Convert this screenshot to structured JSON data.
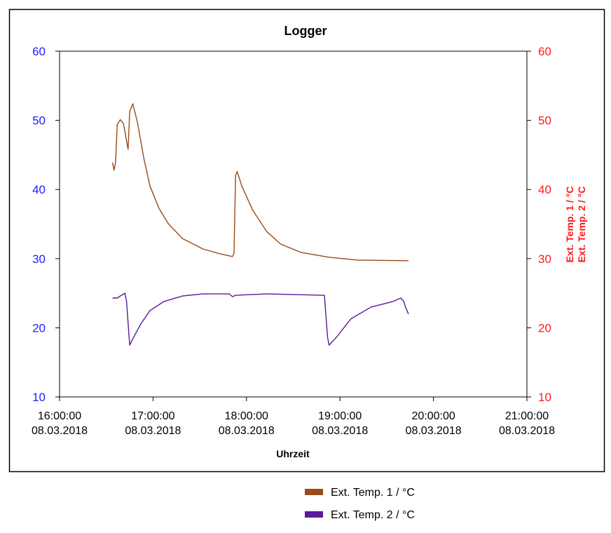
{
  "chart_data": {
    "type": "line",
    "title": "Logger",
    "xlabel": "Uhrzeit",
    "ylabel_right": [
      "Ext. Temp. 1 / °C",
      "Ext. Temp. 2 / °C"
    ],
    "date": "08.03.2018",
    "xlim": [
      "16:00",
      "21:00"
    ],
    "x_ticks": [
      "16:00:00",
      "17:00:00",
      "18:00:00",
      "19:00:00",
      "20:00:00",
      "21:00:00"
    ],
    "ylim": [
      10,
      60
    ],
    "y_ticks": [
      10,
      20,
      30,
      40,
      50,
      60
    ],
    "grid": false,
    "legend": "bottom",
    "colors": {
      "left_axis": "#2020ff",
      "right_axis": "#ff1a1a",
      "frame": "#000000"
    },
    "series": [
      {
        "name": "Ext. Temp. 1 / °C",
        "color": "#9a4a1c",
        "points": [
          [
            "16:34",
            43.9
          ],
          [
            "16:35",
            42.8
          ],
          [
            "16:36",
            44.0
          ],
          [
            "16:37",
            49.4
          ],
          [
            "16:39",
            50.1
          ],
          [
            "16:41",
            49.5
          ],
          [
            "16:44",
            45.8
          ],
          [
            "16:45",
            51.2
          ],
          [
            "16:47",
            52.4
          ],
          [
            "16:50",
            49.7
          ],
          [
            "16:54",
            44.6
          ],
          [
            "16:58",
            40.5
          ],
          [
            "17:04",
            37.2
          ],
          [
            "17:10",
            35.0
          ],
          [
            "17:19",
            32.9
          ],
          [
            "17:32",
            31.4
          ],
          [
            "17:43",
            30.7
          ],
          [
            "17:51",
            30.3
          ],
          [
            "17:52",
            30.8
          ],
          [
            "17:53",
            42.0
          ],
          [
            "17:54",
            42.6
          ],
          [
            "17:57",
            40.5
          ],
          [
            "18:04",
            37.0
          ],
          [
            "18:13",
            33.9
          ],
          [
            "18:22",
            32.1
          ],
          [
            "18:35",
            30.9
          ],
          [
            "18:53",
            30.2
          ],
          [
            "19:11",
            29.8
          ],
          [
            "19:44",
            29.7
          ]
        ]
      },
      {
        "name": "Ext. Temp. 2 / °C",
        "color": "#5a1a9a",
        "points": [
          [
            "16:34",
            24.3
          ],
          [
            "16:37",
            24.3
          ],
          [
            "16:39",
            24.6
          ],
          [
            "16:42",
            25.0
          ],
          [
            "16:43",
            23.8
          ],
          [
            "16:45",
            17.5
          ],
          [
            "16:47",
            18.4
          ],
          [
            "16:52",
            20.5
          ],
          [
            "16:58",
            22.5
          ],
          [
            "17:07",
            23.8
          ],
          [
            "17:19",
            24.6
          ],
          [
            "17:32",
            24.9
          ],
          [
            "17:49",
            24.9
          ],
          [
            "17:51",
            24.5
          ],
          [
            "17:53",
            24.7
          ],
          [
            "18:13",
            24.9
          ],
          [
            "18:50",
            24.7
          ],
          [
            "18:52",
            18.7
          ],
          [
            "18:53",
            17.5
          ],
          [
            "18:58",
            18.7
          ],
          [
            "19:07",
            21.3
          ],
          [
            "19:20",
            23.0
          ],
          [
            "19:34",
            23.8
          ],
          [
            "19:39",
            24.3
          ],
          [
            "19:41",
            23.8
          ],
          [
            "19:42",
            23.0
          ],
          [
            "19:44",
            22.0
          ]
        ]
      }
    ]
  }
}
